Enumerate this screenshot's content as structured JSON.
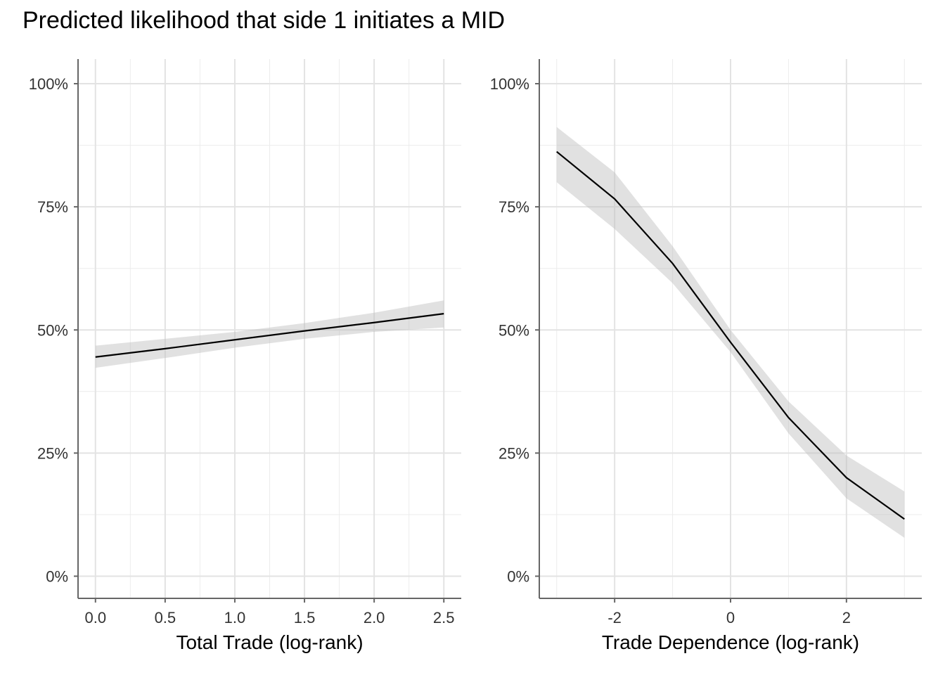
{
  "title": "Predicted likelihood that side 1 initiates a MID",
  "chart_data": [
    {
      "type": "line",
      "xlabel": "Total Trade (log-rank)",
      "ylabel": "",
      "xlim": [
        -0.125,
        2.625
      ],
      "ylim": [
        -0.045,
        1.05
      ],
      "x_ticks": [
        0.0,
        0.5,
        1.0,
        1.5,
        2.0,
        2.5
      ],
      "x_tick_labels": [
        "0.0",
        "0.5",
        "1.0",
        "1.5",
        "2.0",
        "2.5"
      ],
      "y_ticks": [
        0,
        0.25,
        0.5,
        0.75,
        1.0
      ],
      "y_tick_labels": [
        "0%",
        "25%",
        "50%",
        "75%",
        "100%"
      ],
      "grid": true,
      "series": [
        {
          "x": [
            0.0,
            0.5,
            1.0,
            1.5,
            2.0,
            2.5
          ],
          "y": [
            0.445,
            0.462,
            0.48,
            0.498,
            0.515,
            0.533
          ],
          "lower": [
            0.423,
            0.443,
            0.464,
            0.482,
            0.496,
            0.505
          ],
          "upper": [
            0.468,
            0.482,
            0.496,
            0.514,
            0.535,
            0.56
          ]
        }
      ]
    },
    {
      "type": "line",
      "xlabel": "Trade Dependence (log-rank)",
      "ylabel": "",
      "xlim": [
        -3.3,
        3.3
      ],
      "ylim": [
        -0.045,
        1.05
      ],
      "x_ticks": [
        -2,
        0,
        2
      ],
      "x_tick_labels": [
        "-2",
        "0",
        "2"
      ],
      "y_ticks": [
        0,
        0.25,
        0.5,
        0.75,
        1.0
      ],
      "y_tick_labels": [
        "0%",
        "25%",
        "50%",
        "75%",
        "100%"
      ],
      "grid": true,
      "series": [
        {
          "x": [
            -3,
            -2,
            -1,
            0,
            1,
            2,
            3
          ],
          "y": [
            0.862,
            0.766,
            0.635,
            0.475,
            0.322,
            0.2,
            0.116
          ],
          "lower": [
            0.8,
            0.705,
            0.595,
            0.455,
            0.29,
            0.158,
            0.078
          ],
          "upper": [
            0.912,
            0.82,
            0.67,
            0.5,
            0.355,
            0.245,
            0.172
          ]
        }
      ]
    }
  ]
}
